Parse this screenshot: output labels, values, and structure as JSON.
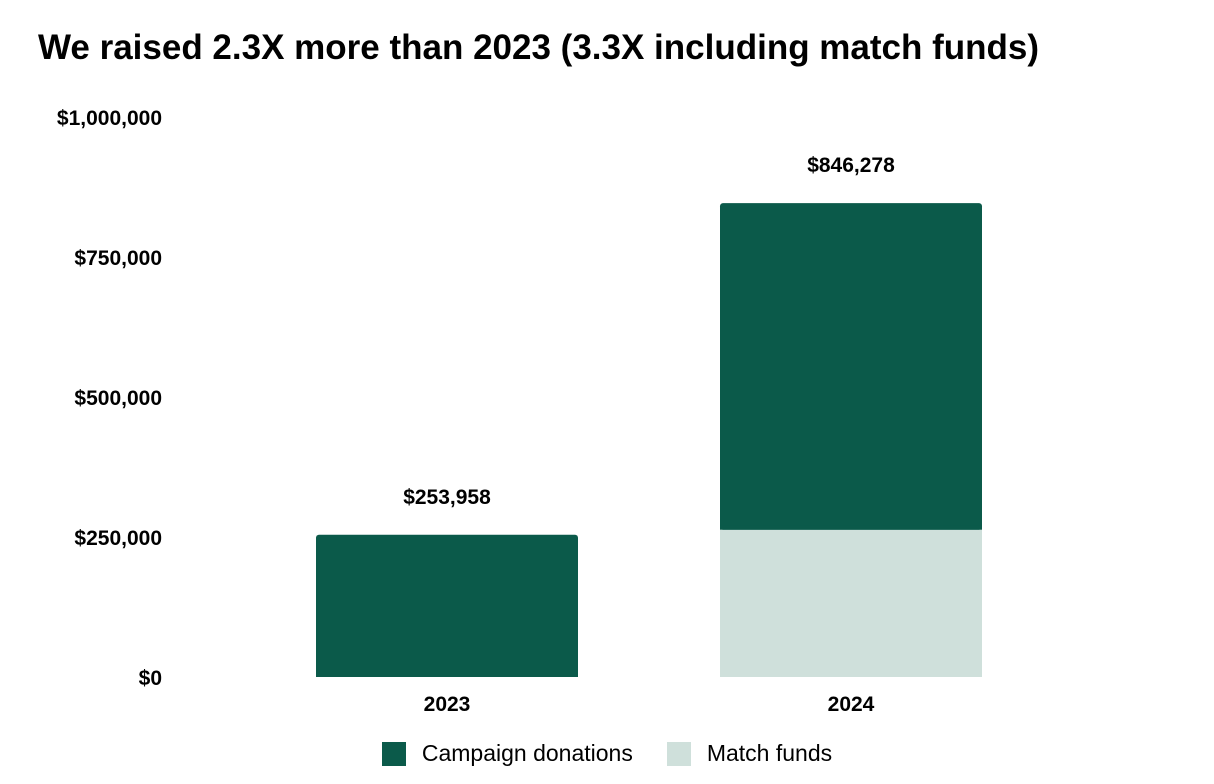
{
  "chart_data": {
    "type": "bar",
    "stacked": true,
    "title": "We raised 2.3X more than 2023 (3.3X including match funds)",
    "xlabel": "",
    "ylabel": "",
    "categories": [
      "2023",
      "2024"
    ],
    "series": [
      {
        "name": "Match funds",
        "values": [
          0,
          263000
        ],
        "color": "#cfe0db"
      },
      {
        "name": "Campaign donations",
        "values": [
          253958,
          583278
        ],
        "color": "#0b5a4a"
      }
    ],
    "totals": [
      253958,
      846278
    ],
    "total_labels": [
      "$253,958",
      "$846,278"
    ],
    "ylim": [
      0,
      1000000
    ],
    "yticks": [
      0,
      250000,
      500000,
      750000,
      1000000
    ],
    "ytick_labels": [
      "$0",
      "$250,000",
      "$500,000",
      "$750,000",
      "$1,000,000"
    ],
    "grid": false,
    "legend_position": "bottom"
  },
  "legend": [
    {
      "label": "Campaign donations",
      "color": "#0b5a4a"
    },
    {
      "label": "Match funds",
      "color": "#cfe0db"
    }
  ]
}
